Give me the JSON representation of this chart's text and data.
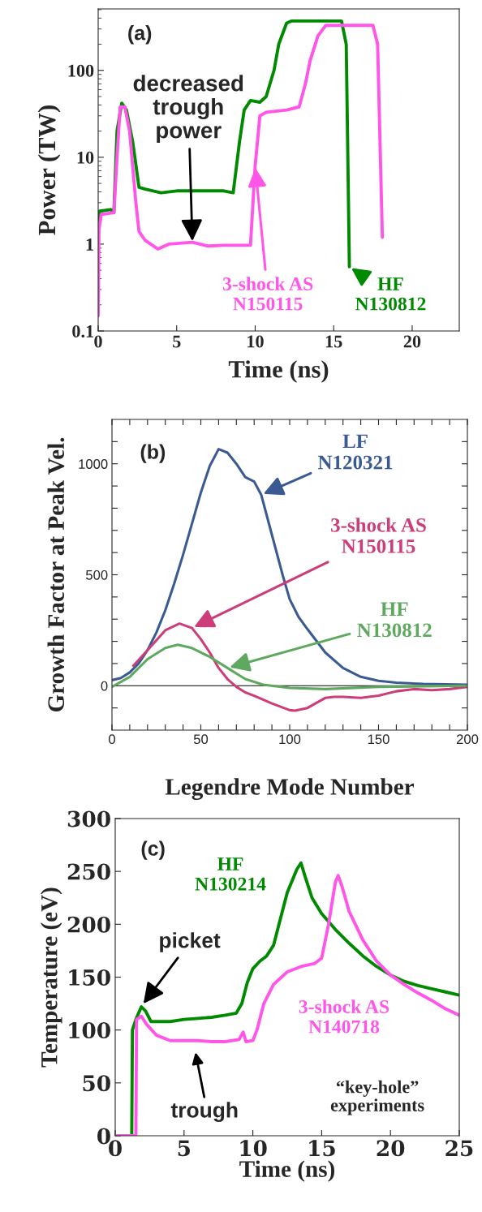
{
  "chart_data": [
    {
      "type": "line",
      "title": "(a)",
      "xlabel": "Time (ns)",
      "ylabel": "Power (TW)",
      "log": "y",
      "xlim": [
        0,
        23
      ],
      "ylim": [
        0.1,
        510
      ],
      "xticks": [
        0,
        5,
        10,
        15,
        20
      ],
      "yticks": [
        0.1,
        1,
        10,
        100
      ],
      "series": [
        {
          "name": "HF\nN130812",
          "color": "#008a00",
          "x": [
            0,
            0.1,
            0.8,
            1.0,
            1.2,
            1.5,
            1.8,
            2.2,
            2.6,
            3,
            4,
            5,
            6,
            7,
            8,
            8.6,
            9.0,
            9.3,
            9.7,
            10.3,
            10.7,
            11.2,
            11.5,
            12,
            12.3,
            15.5,
            15.8,
            16.0
          ],
          "values": [
            1.8,
            2.4,
            2.5,
            2.3,
            20,
            42,
            35,
            15,
            4.5,
            4.3,
            3.9,
            4.1,
            4.1,
            4.1,
            4.1,
            3.9,
            15,
            35,
            45,
            43,
            50,
            100,
            200,
            350,
            370,
            370,
            200,
            0.55
          ]
        },
        {
          "name": "3-shock AS\nN150115",
          "color": "#ff55e8",
          "x": [
            0,
            0.05,
            0.2,
            1.0,
            1.2,
            1.4,
            1.7,
            2.0,
            2.4,
            2.6,
            3,
            3.8,
            4.5,
            6,
            7,
            8,
            9,
            9.7,
            10,
            10.3,
            10.7,
            12,
            12.8,
            13.2,
            13.5,
            14,
            14.5,
            17.5,
            17.8,
            18.1
          ],
          "values": [
            0.15,
            1.5,
            2.2,
            2.3,
            10,
            38,
            38,
            20,
            3,
            1.4,
            1.1,
            0.88,
            1.0,
            1.05,
            0.95,
            0.97,
            0.97,
            0.97,
            8,
            30,
            33,
            35,
            38,
            70,
            130,
            250,
            330,
            330,
            200,
            1.2
          ]
        }
      ],
      "annotations": [
        {
          "text": "decreased\ntrough\npower",
          "x": 6,
          "y": 1.05
        }
      ]
    },
    {
      "type": "line",
      "title": "(b)",
      "xlabel": "Legendre Mode Number",
      "ylabel": "Growth Factor at Peak Vel.",
      "xlim": [
        0,
        200
      ],
      "ylim": [
        -200,
        1200
      ],
      "xticks": [
        0,
        {
          "value": 10,
          "label": null
        },
        {
          "value": 20,
          "label": null
        },
        {
          "value": 30,
          "label": null
        },
        {
          "value": 40,
          "label": null
        },
        50,
        {
          "value": 60,
          "label": null
        },
        {
          "value": 70,
          "label": null
        },
        {
          "value": 80,
          "label": null
        },
        {
          "value": 90,
          "label": null
        },
        100,
        {
          "value": 110,
          "label": null
        },
        {
          "value": 120,
          "label": null
        },
        {
          "value": 130,
          "label": null
        },
        {
          "value": 140,
          "label": null
        },
        150,
        {
          "value": 160,
          "label": null
        },
        {
          "value": 170,
          "label": null
        },
        {
          "value": 180,
          "label": null
        },
        {
          "value": 190,
          "label": null
        },
        200
      ],
      "yticks": [
        {
          "value": -100,
          "label": null
        },
        0,
        {
          "value": 100,
          "label": null
        },
        {
          "value": 200,
          "label": null
        },
        {
          "value": 300,
          "label": null
        },
        {
          "value": 400,
          "label": null
        },
        500,
        {
          "value": 600,
          "label": null
        },
        {
          "value": 700,
          "label": null
        },
        {
          "value": 800,
          "label": null
        },
        {
          "value": 900,
          "label": null
        },
        1000,
        {
          "value": 1100,
          "label": null
        }
      ],
      "ref_lines": [
        {
          "axis": "y",
          "value": 0,
          "color": "#000000"
        }
      ],
      "series": [
        {
          "name": "LF\nN120321",
          "color": "#3a5a92",
          "x": [
            0,
            5,
            10,
            15,
            20,
            25,
            30,
            35,
            40,
            45,
            50,
            55,
            60,
            65,
            70,
            75,
            80,
            84,
            90,
            96,
            100,
            105,
            110,
            120,
            130,
            140,
            150,
            160,
            175,
            200
          ],
          "values": [
            25,
            35,
            60,
            100,
            160,
            240,
            340,
            460,
            590,
            730,
            870,
            990,
            1066,
            1050,
            1000,
            940,
            920,
            860,
            680,
            500,
            390,
            310,
            255,
            150,
            80,
            40,
            22,
            14,
            8,
            5
          ]
        },
        {
          "name": "3-shock AS\nN150115",
          "color": "#cc3d7a",
          "x": [
            12,
            20,
            30,
            38,
            45,
            50,
            55,
            60,
            65,
            70,
            75,
            80,
            90,
            100,
            103,
            110,
            120,
            125,
            130,
            140,
            150,
            160,
            170,
            180,
            190,
            200
          ],
          "values": [
            90,
            160,
            250,
            280,
            260,
            210,
            150,
            80,
            30,
            -5,
            -30,
            -45,
            -80,
            -110,
            -112,
            -100,
            -55,
            -50,
            -50,
            -55,
            -45,
            -25,
            -15,
            -20,
            -15,
            -5
          ]
        },
        {
          "name": "HF\nN130812",
          "color": "#5fa85f",
          "x": [
            0,
            10,
            20,
            30,
            37,
            45,
            55,
            65,
            75,
            85,
            100,
            120,
            150,
            200
          ],
          "values": [
            -5,
            40,
            120,
            170,
            185,
            170,
            130,
            80,
            30,
            5,
            -10,
            -15,
            -5,
            0
          ]
        }
      ]
    },
    {
      "type": "line",
      "title": "(c)",
      "xlabel": "Time (ns)",
      "ylabel": "Temperature (eV)",
      "xlim": [
        0,
        25
      ],
      "ylim": [
        0,
        300
      ],
      "xticks": [
        0,
        5,
        10,
        15,
        20,
        25
      ],
      "yticks": [
        0,
        50,
        100,
        150,
        200,
        250,
        300
      ],
      "series": [
        {
          "name": "HF\nN130214",
          "color": "#008a00",
          "x": [
            0,
            1.2,
            1.25,
            1.5,
            1.9,
            2.2,
            2.6,
            3,
            4,
            5,
            6,
            7,
            8,
            8.8,
            9.2,
            9.6,
            10,
            10.5,
            11,
            11.5,
            12,
            12.5,
            13.2,
            13.5,
            13.8,
            14.3,
            15,
            16,
            17,
            18,
            19,
            20,
            21,
            22,
            23,
            24,
            25
          ],
          "values": [
            0,
            0,
            100,
            110,
            122,
            118,
            108,
            108,
            108,
            110,
            111,
            112,
            114,
            116,
            125,
            145,
            158,
            165,
            170,
            180,
            205,
            230,
            252,
            258,
            245,
            225,
            210,
            195,
            182,
            170,
            160,
            152,
            146,
            142,
            139,
            136,
            133
          ]
        },
        {
          "name": "3-shock AS\nN140718",
          "color": "#ff55e8",
          "x": [
            0,
            1.5,
            1.55,
            1.9,
            2.3,
            3,
            4,
            5,
            6,
            7,
            8,
            9,
            9.3,
            9.5,
            10,
            10.3,
            10.8,
            11.5,
            12.5,
            13.5,
            14.5,
            15,
            15.5,
            16,
            16.2,
            16.5,
            17,
            18,
            19,
            20,
            21,
            22,
            23,
            24,
            25
          ],
          "values": [
            0,
            0,
            110,
            113,
            105,
            95,
            90,
            90,
            90,
            89,
            89,
            91,
            98,
            89,
            90,
            100,
            125,
            143,
            155,
            160,
            163,
            168,
            200,
            240,
            246,
            235,
            212,
            185,
            165,
            152,
            143,
            135,
            128,
            120,
            114
          ]
        }
      ],
      "annotations": [
        {
          "text": "picket",
          "x": 2.0,
          "y": 124
        },
        "trough",
        "“key-hole”\nexperiments"
      ]
    }
  ]
}
